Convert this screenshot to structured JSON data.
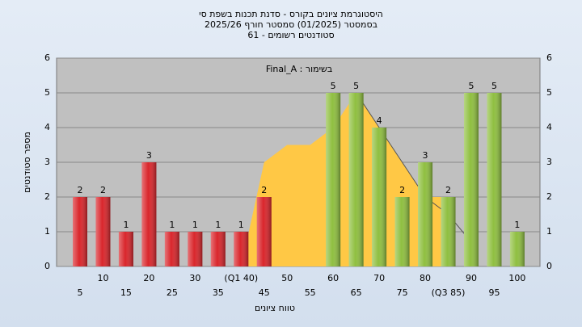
{
  "chart_data": {
    "type": "bar",
    "title": "היסטוגרמת ציונים בקורס - סדנת תכנות בשפת סי",
    "subtitle": "בסמסטר (01/2025) סמסטר חורף 2025/26",
    "subtitle2": "61 - סטודנטים רשומים",
    "annotation": "Final_A : בשימור",
    "x_label": "טווח ציונים",
    "y_label": "מספר סטודנטים",
    "categories": [
      "5",
      "10",
      "15",
      "20",
      "25",
      "30",
      "35",
      "(Q1 40)",
      "45",
      "50",
      "55",
      "60",
      "65",
      "70",
      "75",
      "80",
      "(Q3 85)",
      "90",
      "95",
      "100"
    ],
    "values": [
      2,
      2,
      1,
      3,
      1,
      1,
      1,
      1,
      2,
      0,
      0,
      5,
      5,
      4,
      2,
      3,
      2,
      5,
      5,
      1
    ],
    "colors": [
      "#d9262c",
      "#d9262c",
      "#d9262c",
      "#d9262c",
      "#d9262c",
      "#d9262c",
      "#d9262c",
      "#d9262c",
      "#d9262c",
      "#d9262c",
      "#d9262c",
      "#8fbf40",
      "#8fbf40",
      "#8fbf40",
      "#8fbf40",
      "#8fbf40",
      "#8fbf40",
      "#8fbf40",
      "#8fbf40",
      "#8fbf40"
    ],
    "series": [
      {
        "type": "area",
        "color": "#ffc845",
        "values": [
          null,
          null,
          null,
          null,
          null,
          null,
          null,
          0,
          3,
          3.5,
          3.5,
          4,
          5,
          4,
          3,
          2,
          2,
          null,
          null,
          null
        ]
      },
      {
        "type": "line",
        "color": "#555555",
        "values": [
          null,
          null,
          null,
          null,
          null,
          null,
          null,
          null,
          null,
          null,
          null,
          null,
          5,
          4,
          3,
          2,
          1.5,
          0.7,
          null,
          null
        ]
      }
    ],
    "ylim": [
      0,
      6
    ],
    "yticks": [
      0,
      1,
      2,
      3,
      4,
      5,
      6
    ],
    "grid": true
  }
}
